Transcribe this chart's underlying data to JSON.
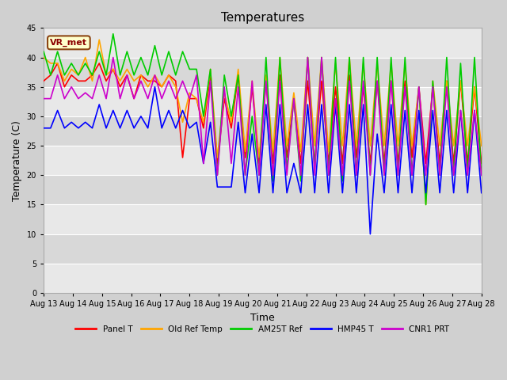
{
  "title": "Temperatures",
  "xlabel": "Time",
  "ylabel": "Temperature (C)",
  "annotation": "VR_met",
  "ylim": [
    0,
    45
  ],
  "yticks": [
    0,
    5,
    10,
    15,
    20,
    25,
    30,
    35,
    40,
    45
  ],
  "xtick_labels": [
    "Aug 13",
    "Aug 14",
    "Aug 15",
    "Aug 16",
    "Aug 17",
    "Aug 18",
    "Aug 19",
    "Aug 20",
    "Aug 21",
    "Aug 22",
    "Aug 23",
    "Aug 24",
    "Aug 25",
    "Aug 26",
    "Aug 27",
    "Aug 28"
  ],
  "series": {
    "Panel T": {
      "color": "#ff0000",
      "linewidth": 1.2,
      "y": [
        36,
        37,
        39,
        35,
        37,
        36,
        36,
        37,
        39,
        36,
        38,
        35,
        37,
        33,
        37,
        36,
        36,
        35,
        37,
        36,
        23,
        33,
        33,
        28,
        37,
        22,
        33,
        28,
        37,
        23,
        35,
        22,
        36,
        22,
        37,
        23,
        33,
        22,
        36,
        22,
        36,
        22,
        35,
        22,
        37,
        23,
        35,
        22,
        36,
        22,
        36,
        22,
        36,
        23,
        35,
        22,
        35,
        22,
        36,
        22,
        36,
        22,
        35,
        22
      ]
    },
    "Old Ref Temp": {
      "color": "#ffa500",
      "linewidth": 1.2,
      "y": [
        40,
        39,
        39,
        36,
        38,
        37,
        40,
        36,
        43,
        37,
        38,
        36,
        38,
        36,
        37,
        35,
        37,
        35,
        37,
        35,
        29,
        34,
        33,
        29,
        38,
        23,
        34,
        29,
        38,
        24,
        36,
        23,
        37,
        24,
        40,
        25,
        34,
        24,
        40,
        25,
        40,
        24,
        39,
        25,
        40,
        25,
        39,
        25,
        39,
        25,
        39,
        25,
        39,
        25,
        35,
        15,
        36,
        25,
        36,
        25,
        36,
        25,
        35,
        25
      ]
    },
    "AM25T Ref": {
      "color": "#00cc00",
      "linewidth": 1.2,
      "y": [
        41,
        37,
        41,
        37,
        39,
        37,
        39,
        37,
        41,
        37,
        44,
        37,
        41,
        37,
        40,
        37,
        42,
        37,
        41,
        37,
        41,
        38,
        38,
        30,
        38,
        20,
        37,
        30,
        37,
        20,
        30,
        20,
        40,
        19,
        40,
        21,
        33,
        19,
        40,
        21,
        40,
        20,
        40,
        19,
        40,
        20,
        40,
        20,
        40,
        20,
        40,
        20,
        40,
        20,
        35,
        15,
        36,
        20,
        40,
        20,
        39,
        20,
        40,
        20
      ]
    },
    "HMP45 T": {
      "color": "#0000ff",
      "linewidth": 1.2,
      "y": [
        28,
        28,
        31,
        28,
        29,
        28,
        29,
        28,
        32,
        28,
        31,
        28,
        31,
        28,
        30,
        28,
        35,
        28,
        31,
        28,
        31,
        28,
        29,
        22,
        29,
        18,
        18,
        18,
        29,
        17,
        27,
        17,
        32,
        17,
        32,
        17,
        22,
        17,
        32,
        17,
        32,
        17,
        32,
        17,
        32,
        17,
        32,
        10,
        27,
        17,
        32,
        17,
        31,
        17,
        31,
        17,
        31,
        17,
        31,
        17,
        31,
        17,
        31,
        17
      ]
    },
    "CNR1 PRT": {
      "color": "#cc00cc",
      "linewidth": 1.2,
      "y": [
        33,
        33,
        37,
        33,
        35,
        33,
        34,
        33,
        37,
        33,
        40,
        33,
        37,
        33,
        36,
        33,
        37,
        33,
        36,
        33,
        36,
        33,
        37,
        22,
        36,
        20,
        35,
        22,
        35,
        20,
        36,
        20,
        36,
        20,
        36,
        20,
        33,
        20,
        40,
        20,
        40,
        20,
        33,
        20,
        36,
        20,
        36,
        20,
        36,
        20,
        36,
        20,
        35,
        20,
        35,
        20,
        35,
        20,
        35,
        20,
        31,
        20,
        31,
        20
      ]
    }
  }
}
